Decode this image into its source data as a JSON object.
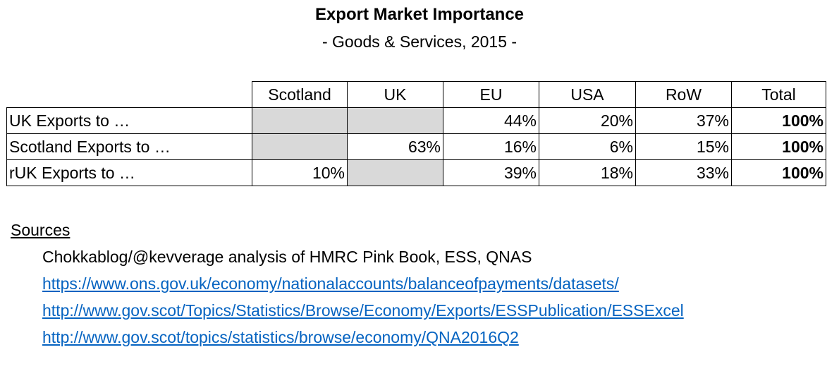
{
  "title": "Export Market Importance",
  "subtitle": "- Goods & Services, 2015 -",
  "table": {
    "columns": [
      "Scotland",
      "UK",
      "EU",
      "USA",
      "RoW",
      "Total"
    ],
    "rows": [
      {
        "label": "UK Exports to …",
        "cells": [
          "",
          "",
          "44%",
          "20%",
          "37%",
          "100%"
        ],
        "shaded": [
          true,
          true,
          false,
          false,
          false,
          false
        ]
      },
      {
        "label": "Scotland Exports to …",
        "cells": [
          "",
          "63%",
          "16%",
          "6%",
          "15%",
          "100%"
        ],
        "shaded": [
          true,
          false,
          false,
          false,
          false,
          false
        ]
      },
      {
        "label": "rUK Exports to …",
        "cells": [
          "10%",
          "",
          "39%",
          "18%",
          "33%",
          "100%"
        ],
        "shaded": [
          false,
          true,
          false,
          false,
          false,
          false
        ]
      }
    ],
    "shade_color": "#d9d9d9"
  },
  "sources": {
    "heading": "Sources",
    "analysis": "Chokkablog/@kevverage analysis of HMRC Pink Book, ESS, QNAS",
    "links": [
      "https://www.ons.gov.uk/economy/nationalaccounts/balanceofpayments/datasets/",
      "http://www.gov.scot/Topics/Statistics/Browse/Economy/Exports/ESSPublication/ESSExcel",
      "http://www.gov.scot/topics/statistics/browse/economy/QNA2016Q2"
    ],
    "link_color": "#0563c1"
  }
}
